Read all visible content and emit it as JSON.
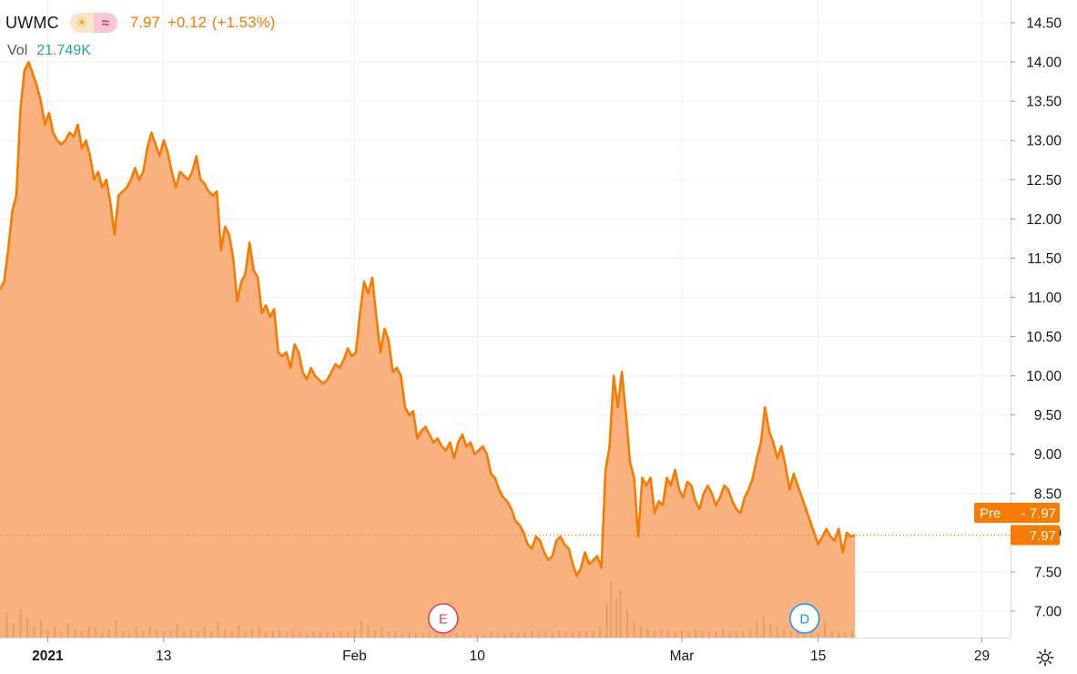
{
  "header": {
    "symbol": "UWMC",
    "sun_icon": "sun-icon",
    "wave_icon": "approx-wave-icon",
    "last_price": "7.97",
    "change": "+0.12",
    "change_pct": "(+1.53%)",
    "volume_label": "Vol",
    "volume_value": "21.749K"
  },
  "labels": {
    "pre_tag": "Pre",
    "pre_value": "7.97",
    "last_value": "7.97"
  },
  "markers": [
    {
      "letter": "E",
      "x_day": 32.5,
      "color": "#e0435d"
    },
    {
      "letter": "D",
      "x_day": 59,
      "color": "#2196f3"
    }
  ],
  "settings_icon": "gear-icon",
  "colors": {
    "line": "#f57c00",
    "fill": "#f9b27f",
    "volume": "#e39a62",
    "grid": "#eef0f3",
    "axis_text": "#131722"
  },
  "chart_data": {
    "type": "area",
    "title": "",
    "xlabel": "",
    "ylabel": "",
    "x_unit": "trading day (0 = Dec 28, 2020)",
    "ylim": [
      6.7,
      14.6
    ],
    "yticks": [
      7.0,
      7.5,
      8.0,
      8.5,
      9.0,
      9.5,
      10.0,
      10.5,
      11.0,
      11.5,
      12.0,
      12.5,
      13.0,
      13.5,
      14.0,
      14.5
    ],
    "xticks": [
      {
        "label": "2021",
        "x": 3.5,
        "bold": true
      },
      {
        "label": "13",
        "x": 12
      },
      {
        "label": "Feb",
        "x": 26
      },
      {
        "label": "10",
        "x": 35
      },
      {
        "label": "Mar",
        "x": 50
      },
      {
        "label": "15",
        "x": 60
      },
      {
        "label": "29",
        "x": 72
      }
    ],
    "x_range": [
      0,
      72.5
    ],
    "series": [
      {
        "values": [
          [
            0.0,
            11.1
          ],
          [
            0.3,
            11.2
          ],
          [
            0.6,
            11.6
          ],
          [
            0.9,
            12.1
          ],
          [
            1.2,
            12.3
          ],
          [
            1.5,
            13.4
          ],
          [
            1.8,
            13.9
          ],
          [
            2.1,
            14.0
          ],
          [
            2.4,
            13.85
          ],
          [
            2.7,
            13.7
          ],
          [
            3.0,
            13.5
          ],
          [
            3.3,
            13.2
          ],
          [
            3.6,
            13.35
          ],
          [
            3.9,
            13.1
          ],
          [
            4.2,
            13.0
          ],
          [
            4.5,
            12.95
          ],
          [
            4.8,
            13.0
          ],
          [
            5.1,
            13.1
          ],
          [
            5.4,
            13.05
          ],
          [
            5.7,
            13.2
          ],
          [
            6.0,
            12.9
          ],
          [
            6.3,
            13.0
          ],
          [
            6.6,
            12.8
          ],
          [
            6.9,
            12.5
          ],
          [
            7.2,
            12.6
          ],
          [
            7.5,
            12.4
          ],
          [
            7.8,
            12.5
          ],
          [
            8.1,
            12.2
          ],
          [
            8.4,
            11.8
          ],
          [
            8.7,
            12.3
          ],
          [
            9.0,
            12.35
          ],
          [
            9.3,
            12.4
          ],
          [
            9.6,
            12.5
          ],
          [
            9.9,
            12.65
          ],
          [
            10.2,
            12.5
          ],
          [
            10.5,
            12.6
          ],
          [
            10.8,
            12.9
          ],
          [
            11.1,
            13.1
          ],
          [
            11.4,
            12.95
          ],
          [
            11.7,
            12.8
          ],
          [
            12.0,
            13.0
          ],
          [
            12.3,
            12.85
          ],
          [
            12.6,
            12.6
          ],
          [
            12.9,
            12.4
          ],
          [
            13.2,
            12.6
          ],
          [
            13.5,
            12.55
          ],
          [
            13.8,
            12.5
          ],
          [
            14.1,
            12.6
          ],
          [
            14.4,
            12.8
          ],
          [
            14.7,
            12.5
          ],
          [
            15.0,
            12.45
          ],
          [
            15.3,
            12.35
          ],
          [
            15.6,
            12.3
          ],
          [
            15.9,
            12.35
          ],
          [
            16.2,
            11.6
          ],
          [
            16.5,
            11.9
          ],
          [
            16.8,
            11.8
          ],
          [
            17.1,
            11.5
          ],
          [
            17.4,
            10.95
          ],
          [
            17.7,
            11.2
          ],
          [
            18.0,
            11.3
          ],
          [
            18.3,
            11.7
          ],
          [
            18.6,
            11.35
          ],
          [
            18.9,
            11.25
          ],
          [
            19.2,
            10.8
          ],
          [
            19.5,
            10.9
          ],
          [
            19.8,
            10.75
          ],
          [
            20.1,
            10.85
          ],
          [
            20.4,
            10.3
          ],
          [
            20.7,
            10.25
          ],
          [
            21.0,
            10.3
          ],
          [
            21.3,
            10.1
          ],
          [
            21.6,
            10.4
          ],
          [
            21.9,
            10.3
          ],
          [
            22.2,
            10.05
          ],
          [
            22.5,
            9.95
          ],
          [
            22.8,
            10.1
          ],
          [
            23.1,
            10.0
          ],
          [
            23.4,
            9.95
          ],
          [
            23.7,
            9.9
          ],
          [
            24.0,
            9.95
          ],
          [
            24.3,
            10.05
          ],
          [
            24.6,
            10.15
          ],
          [
            24.9,
            10.1
          ],
          [
            25.2,
            10.2
          ],
          [
            25.5,
            10.35
          ],
          [
            25.8,
            10.25
          ],
          [
            26.1,
            10.3
          ],
          [
            26.4,
            10.8
          ],
          [
            26.7,
            11.2
          ],
          [
            27.0,
            11.05
          ],
          [
            27.3,
            11.25
          ],
          [
            27.6,
            10.75
          ],
          [
            27.9,
            10.3
          ],
          [
            28.2,
            10.6
          ],
          [
            28.5,
            10.45
          ],
          [
            28.8,
            10.05
          ],
          [
            29.1,
            10.1
          ],
          [
            29.4,
            10.0
          ],
          [
            29.7,
            9.6
          ],
          [
            30.0,
            9.5
          ],
          [
            30.3,
            9.55
          ],
          [
            30.6,
            9.2
          ],
          [
            30.9,
            9.3
          ],
          [
            31.2,
            9.35
          ],
          [
            31.5,
            9.25
          ],
          [
            31.8,
            9.15
          ],
          [
            32.1,
            9.2
          ],
          [
            32.4,
            9.1
          ],
          [
            32.7,
            9.05
          ],
          [
            33.0,
            9.15
          ],
          [
            33.3,
            8.95
          ],
          [
            33.6,
            9.15
          ],
          [
            33.9,
            9.25
          ],
          [
            34.2,
            9.1
          ],
          [
            34.5,
            9.15
          ],
          [
            34.8,
            9.0
          ],
          [
            35.1,
            9.05
          ],
          [
            35.4,
            9.1
          ],
          [
            35.7,
            9.0
          ],
          [
            36.0,
            8.75
          ],
          [
            36.3,
            8.7
          ],
          [
            36.6,
            8.55
          ],
          [
            36.9,
            8.45
          ],
          [
            37.2,
            8.4
          ],
          [
            37.5,
            8.3
          ],
          [
            37.8,
            8.15
          ],
          [
            38.1,
            8.1
          ],
          [
            38.4,
            8.0
          ],
          [
            38.7,
            7.85
          ],
          [
            39.0,
            7.8
          ],
          [
            39.3,
            7.95
          ],
          [
            39.6,
            7.9
          ],
          [
            39.9,
            7.75
          ],
          [
            40.2,
            7.65
          ],
          [
            40.5,
            7.7
          ],
          [
            40.8,
            7.9
          ],
          [
            41.1,
            7.95
          ],
          [
            41.4,
            7.85
          ],
          [
            41.7,
            7.8
          ],
          [
            42.0,
            7.6
          ],
          [
            42.3,
            7.45
          ],
          [
            42.6,
            7.55
          ],
          [
            42.9,
            7.75
          ],
          [
            43.2,
            7.6
          ],
          [
            43.5,
            7.65
          ],
          [
            43.8,
            7.7
          ],
          [
            44.1,
            7.55
          ],
          [
            44.4,
            8.8
          ],
          [
            44.7,
            9.1
          ],
          [
            45.0,
            10.0
          ],
          [
            45.3,
            9.6
          ],
          [
            45.6,
            10.05
          ],
          [
            45.9,
            9.5
          ],
          [
            46.2,
            8.9
          ],
          [
            46.5,
            8.7
          ],
          [
            46.8,
            7.95
          ],
          [
            47.1,
            8.7
          ],
          [
            47.4,
            8.6
          ],
          [
            47.7,
            8.7
          ],
          [
            48.0,
            8.25
          ],
          [
            48.3,
            8.4
          ],
          [
            48.6,
            8.35
          ],
          [
            48.9,
            8.7
          ],
          [
            49.2,
            8.6
          ],
          [
            49.5,
            8.8
          ],
          [
            49.8,
            8.55
          ],
          [
            50.1,
            8.45
          ],
          [
            50.4,
            8.65
          ],
          [
            50.7,
            8.6
          ],
          [
            51.0,
            8.4
          ],
          [
            51.3,
            8.3
          ],
          [
            51.6,
            8.5
          ],
          [
            51.9,
            8.6
          ],
          [
            52.2,
            8.5
          ],
          [
            52.5,
            8.35
          ],
          [
            52.8,
            8.45
          ],
          [
            53.1,
            8.6
          ],
          [
            53.4,
            8.55
          ],
          [
            53.7,
            8.4
          ],
          [
            54.0,
            8.3
          ],
          [
            54.3,
            8.25
          ],
          [
            54.6,
            8.45
          ],
          [
            54.9,
            8.55
          ],
          [
            55.2,
            8.7
          ],
          [
            55.5,
            8.95
          ],
          [
            55.8,
            9.15
          ],
          [
            56.1,
            9.6
          ],
          [
            56.4,
            9.3
          ],
          [
            56.7,
            9.15
          ],
          [
            57.0,
            8.95
          ],
          [
            57.3,
            9.1
          ],
          [
            57.6,
            8.85
          ],
          [
            57.9,
            8.55
          ],
          [
            58.2,
            8.75
          ],
          [
            58.5,
            8.6
          ],
          [
            58.8,
            8.45
          ],
          [
            59.1,
            8.3
          ],
          [
            59.4,
            8.15
          ],
          [
            59.7,
            8.0
          ],
          [
            60.0,
            7.85
          ],
          [
            60.3,
            7.95
          ],
          [
            60.6,
            8.05
          ],
          [
            60.9,
            7.95
          ],
          [
            61.2,
            7.9
          ],
          [
            61.5,
            8.05
          ],
          [
            61.8,
            7.75
          ],
          [
            62.1,
            8.0
          ],
          [
            62.4,
            7.95
          ],
          [
            62.7,
            7.97
          ]
        ]
      }
    ],
    "volume": [
      [
        0.5,
        0.45
      ],
      [
        1.0,
        0.25
      ],
      [
        1.5,
        0.5
      ],
      [
        2.0,
        0.35
      ],
      [
        2.5,
        0.2
      ],
      [
        3.0,
        0.3
      ],
      [
        3.5,
        0.15
      ],
      [
        4.0,
        0.2
      ],
      [
        4.5,
        0.1
      ],
      [
        5.0,
        0.25
      ],
      [
        5.5,
        0.15
      ],
      [
        6.0,
        0.12
      ],
      [
        6.5,
        0.2
      ],
      [
        7.0,
        0.18
      ],
      [
        7.5,
        0.1
      ],
      [
        8.0,
        0.15
      ],
      [
        8.5,
        0.3
      ],
      [
        9.0,
        0.12
      ],
      [
        9.5,
        0.1
      ],
      [
        10.0,
        0.18
      ],
      [
        10.5,
        0.12
      ],
      [
        11.0,
        0.2
      ],
      [
        11.5,
        0.15
      ],
      [
        12.0,
        0.1
      ],
      [
        12.5,
        0.12
      ],
      [
        13.0,
        0.25
      ],
      [
        13.5,
        0.1
      ],
      [
        14.0,
        0.15
      ],
      [
        14.5,
        0.12
      ],
      [
        15.0,
        0.2
      ],
      [
        15.5,
        0.1
      ],
      [
        16.0,
        0.28
      ],
      [
        16.5,
        0.15
      ],
      [
        17.0,
        0.12
      ],
      [
        17.5,
        0.22
      ],
      [
        18.0,
        0.1
      ],
      [
        18.5,
        0.15
      ],
      [
        19.0,
        0.2
      ],
      [
        19.5,
        0.1
      ],
      [
        20.0,
        0.12
      ],
      [
        20.5,
        0.15
      ],
      [
        21.0,
        0.1
      ],
      [
        21.5,
        0.12
      ],
      [
        22.0,
        0.1
      ],
      [
        22.5,
        0.08
      ],
      [
        23.0,
        0.12
      ],
      [
        23.5,
        0.1
      ],
      [
        24.0,
        0.08
      ],
      [
        24.5,
        0.1
      ],
      [
        25.0,
        0.12
      ],
      [
        25.5,
        0.1
      ],
      [
        26.0,
        0.15
      ],
      [
        26.5,
        0.3
      ],
      [
        27.0,
        0.22
      ],
      [
        27.5,
        0.12
      ],
      [
        28.0,
        0.18
      ],
      [
        28.5,
        0.1
      ],
      [
        29.0,
        0.12
      ],
      [
        29.5,
        0.08
      ],
      [
        30.0,
        0.1
      ],
      [
        30.5,
        0.08
      ],
      [
        31.0,
        0.1
      ],
      [
        31.5,
        0.08
      ],
      [
        32.0,
        0.06
      ],
      [
        32.5,
        0.08
      ],
      [
        33.0,
        0.06
      ],
      [
        33.5,
        0.08
      ],
      [
        34.0,
        0.1
      ],
      [
        34.5,
        0.06
      ],
      [
        35.0,
        0.08
      ],
      [
        35.5,
        0.06
      ],
      [
        36.0,
        0.1
      ],
      [
        36.5,
        0.08
      ],
      [
        37.0,
        0.06
      ],
      [
        37.5,
        0.08
      ],
      [
        38.0,
        0.1
      ],
      [
        38.5,
        0.08
      ],
      [
        39.0,
        0.12
      ],
      [
        39.5,
        0.08
      ],
      [
        40.0,
        0.1
      ],
      [
        40.5,
        0.08
      ],
      [
        41.0,
        0.12
      ],
      [
        41.5,
        0.1
      ],
      [
        42.0,
        0.08
      ],
      [
        42.5,
        0.1
      ],
      [
        43.0,
        0.12
      ],
      [
        43.5,
        0.1
      ],
      [
        44.0,
        0.2
      ],
      [
        44.5,
        0.6
      ],
      [
        44.8,
        1.0
      ],
      [
        45.2,
        0.7
      ],
      [
        45.5,
        0.85
      ],
      [
        46.0,
        0.5
      ],
      [
        46.5,
        0.3
      ],
      [
        47.0,
        0.2
      ],
      [
        47.5,
        0.15
      ],
      [
        48.0,
        0.12
      ],
      [
        48.5,
        0.15
      ],
      [
        49.0,
        0.12
      ],
      [
        49.5,
        0.1
      ],
      [
        50.0,
        0.12
      ],
      [
        50.5,
        0.1
      ],
      [
        51.0,
        0.15
      ],
      [
        51.5,
        0.12
      ],
      [
        52.0,
        0.1
      ],
      [
        52.5,
        0.12
      ],
      [
        53.0,
        0.15
      ],
      [
        53.5,
        0.12
      ],
      [
        54.0,
        0.1
      ],
      [
        54.5,
        0.12
      ],
      [
        55.0,
        0.15
      ],
      [
        55.5,
        0.3
      ],
      [
        56.0,
        0.38
      ],
      [
        56.5,
        0.25
      ],
      [
        57.0,
        0.2
      ],
      [
        57.5,
        0.15
      ],
      [
        58.0,
        0.12
      ],
      [
        58.5,
        0.15
      ],
      [
        59.0,
        0.1
      ],
      [
        59.5,
        0.12
      ],
      [
        60.0,
        0.08
      ],
      [
        60.5,
        0.3
      ],
      [
        61.0,
        0.12
      ],
      [
        61.5,
        0.08
      ],
      [
        62.0,
        0.1
      ],
      [
        62.5,
        0.12
      ]
    ]
  }
}
